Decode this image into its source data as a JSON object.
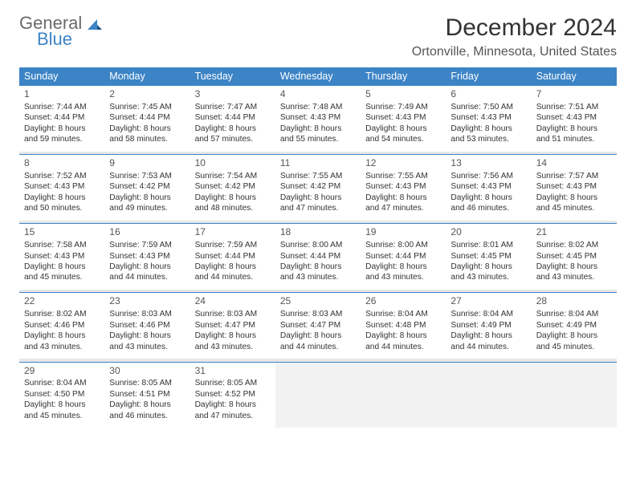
{
  "logo": {
    "line1": "General",
    "line2": "Blue",
    "text_color": "#6b6b6b",
    "accent_color": "#3c84c6"
  },
  "title": "December 2024",
  "location": "Ortonville, Minnesota, United States",
  "header_bg": "#3c84c6",
  "header_fg": "#ffffff",
  "empty_bg": "#f2f2f2",
  "border_color": "#3c84c6",
  "day_names": [
    "Sunday",
    "Monday",
    "Tuesday",
    "Wednesday",
    "Thursday",
    "Friday",
    "Saturday"
  ],
  "weeks": [
    [
      {
        "n": "1",
        "sr": "7:44 AM",
        "ss": "4:44 PM",
        "dl": "8 hours and 59 minutes."
      },
      {
        "n": "2",
        "sr": "7:45 AM",
        "ss": "4:44 PM",
        "dl": "8 hours and 58 minutes."
      },
      {
        "n": "3",
        "sr": "7:47 AM",
        "ss": "4:44 PM",
        "dl": "8 hours and 57 minutes."
      },
      {
        "n": "4",
        "sr": "7:48 AM",
        "ss": "4:43 PM",
        "dl": "8 hours and 55 minutes."
      },
      {
        "n": "5",
        "sr": "7:49 AM",
        "ss": "4:43 PM",
        "dl": "8 hours and 54 minutes."
      },
      {
        "n": "6",
        "sr": "7:50 AM",
        "ss": "4:43 PM",
        "dl": "8 hours and 53 minutes."
      },
      {
        "n": "7",
        "sr": "7:51 AM",
        "ss": "4:43 PM",
        "dl": "8 hours and 51 minutes."
      }
    ],
    [
      {
        "n": "8",
        "sr": "7:52 AM",
        "ss": "4:43 PM",
        "dl": "8 hours and 50 minutes."
      },
      {
        "n": "9",
        "sr": "7:53 AM",
        "ss": "4:42 PM",
        "dl": "8 hours and 49 minutes."
      },
      {
        "n": "10",
        "sr": "7:54 AM",
        "ss": "4:42 PM",
        "dl": "8 hours and 48 minutes."
      },
      {
        "n": "11",
        "sr": "7:55 AM",
        "ss": "4:42 PM",
        "dl": "8 hours and 47 minutes."
      },
      {
        "n": "12",
        "sr": "7:55 AM",
        "ss": "4:43 PM",
        "dl": "8 hours and 47 minutes."
      },
      {
        "n": "13",
        "sr": "7:56 AM",
        "ss": "4:43 PM",
        "dl": "8 hours and 46 minutes."
      },
      {
        "n": "14",
        "sr": "7:57 AM",
        "ss": "4:43 PM",
        "dl": "8 hours and 45 minutes."
      }
    ],
    [
      {
        "n": "15",
        "sr": "7:58 AM",
        "ss": "4:43 PM",
        "dl": "8 hours and 45 minutes."
      },
      {
        "n": "16",
        "sr": "7:59 AM",
        "ss": "4:43 PM",
        "dl": "8 hours and 44 minutes."
      },
      {
        "n": "17",
        "sr": "7:59 AM",
        "ss": "4:44 PM",
        "dl": "8 hours and 44 minutes."
      },
      {
        "n": "18",
        "sr": "8:00 AM",
        "ss": "4:44 PM",
        "dl": "8 hours and 43 minutes."
      },
      {
        "n": "19",
        "sr": "8:00 AM",
        "ss": "4:44 PM",
        "dl": "8 hours and 43 minutes."
      },
      {
        "n": "20",
        "sr": "8:01 AM",
        "ss": "4:45 PM",
        "dl": "8 hours and 43 minutes."
      },
      {
        "n": "21",
        "sr": "8:02 AM",
        "ss": "4:45 PM",
        "dl": "8 hours and 43 minutes."
      }
    ],
    [
      {
        "n": "22",
        "sr": "8:02 AM",
        "ss": "4:46 PM",
        "dl": "8 hours and 43 minutes."
      },
      {
        "n": "23",
        "sr": "8:03 AM",
        "ss": "4:46 PM",
        "dl": "8 hours and 43 minutes."
      },
      {
        "n": "24",
        "sr": "8:03 AM",
        "ss": "4:47 PM",
        "dl": "8 hours and 43 minutes."
      },
      {
        "n": "25",
        "sr": "8:03 AM",
        "ss": "4:47 PM",
        "dl": "8 hours and 44 minutes."
      },
      {
        "n": "26",
        "sr": "8:04 AM",
        "ss": "4:48 PM",
        "dl": "8 hours and 44 minutes."
      },
      {
        "n": "27",
        "sr": "8:04 AM",
        "ss": "4:49 PM",
        "dl": "8 hours and 44 minutes."
      },
      {
        "n": "28",
        "sr": "8:04 AM",
        "ss": "4:49 PM",
        "dl": "8 hours and 45 minutes."
      }
    ],
    [
      {
        "n": "29",
        "sr": "8:04 AM",
        "ss": "4:50 PM",
        "dl": "8 hours and 45 minutes."
      },
      {
        "n": "30",
        "sr": "8:05 AM",
        "ss": "4:51 PM",
        "dl": "8 hours and 46 minutes."
      },
      {
        "n": "31",
        "sr": "8:05 AM",
        "ss": "4:52 PM",
        "dl": "8 hours and 47 minutes."
      },
      null,
      null,
      null,
      null
    ]
  ],
  "labels": {
    "sunrise": "Sunrise:",
    "sunset": "Sunset:",
    "daylight": "Daylight:"
  }
}
